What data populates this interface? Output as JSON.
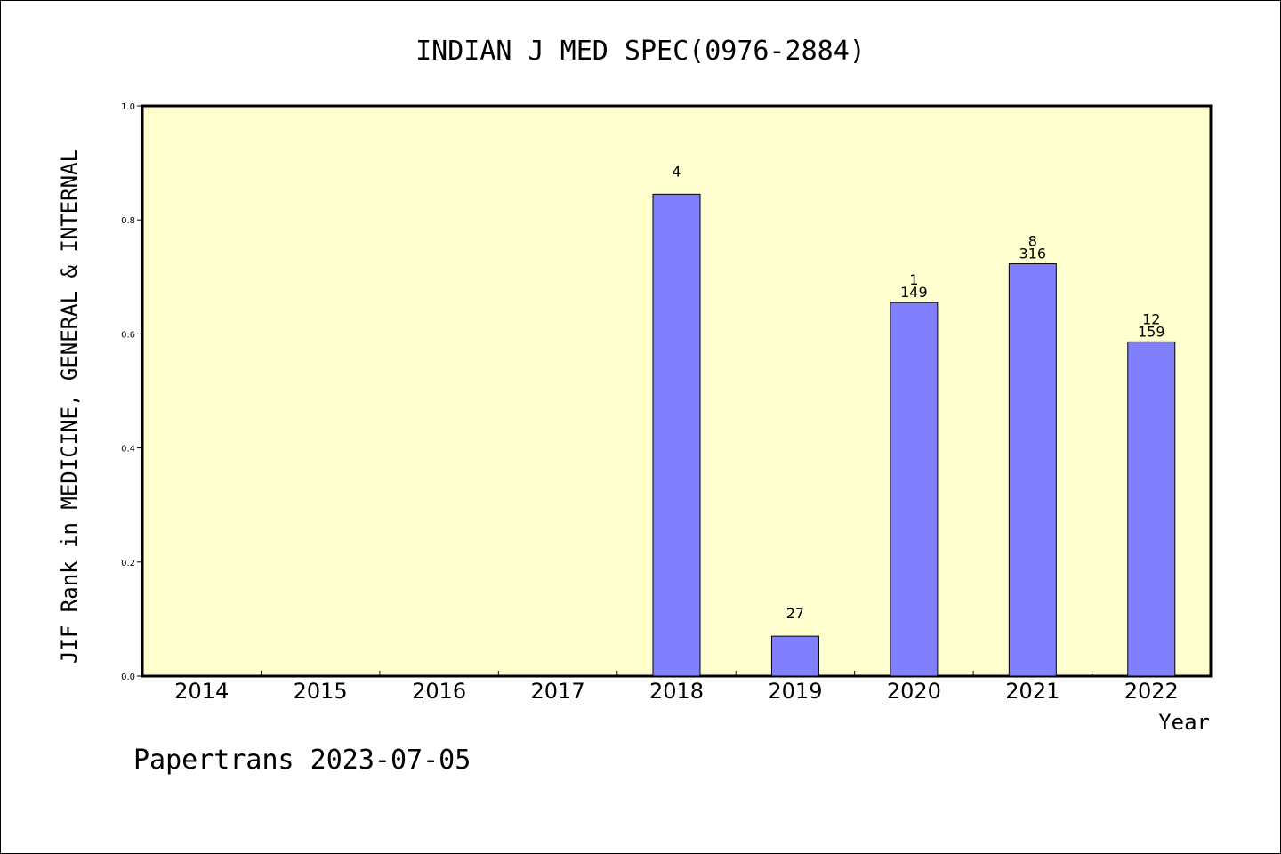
{
  "chart_data": {
    "type": "bar",
    "title": "INDIAN J MED SPEC(0976-2884)",
    "xlabel": "Year",
    "ylabel": "JIF Rank in MEDICINE, GENERAL & INTERNAL",
    "ylim": [
      0,
      1.0
    ],
    "yticks": [
      "0.0",
      "0.2",
      "0.4",
      "0.6",
      "0.8",
      "1.0"
    ],
    "categories": [
      "2014",
      "2015",
      "2016",
      "2017",
      "2018",
      "2019",
      "2020",
      "2021",
      "2022"
    ],
    "values": [
      null,
      null,
      null,
      null,
      0.845,
      0.07,
      0.655,
      0.723,
      0.586
    ],
    "labels": [
      [],
      [],
      [],
      [],
      [
        "4"
      ],
      [
        "27"
      ],
      [
        "1",
        "149"
      ],
      [
        "8",
        "316"
      ],
      [
        "12",
        "159"
      ]
    ],
    "colors": {
      "bar": "#8080ff",
      "plot_bg": "#ffffd0"
    },
    "grid": false
  },
  "footer": "Papertrans 2023-07-05"
}
